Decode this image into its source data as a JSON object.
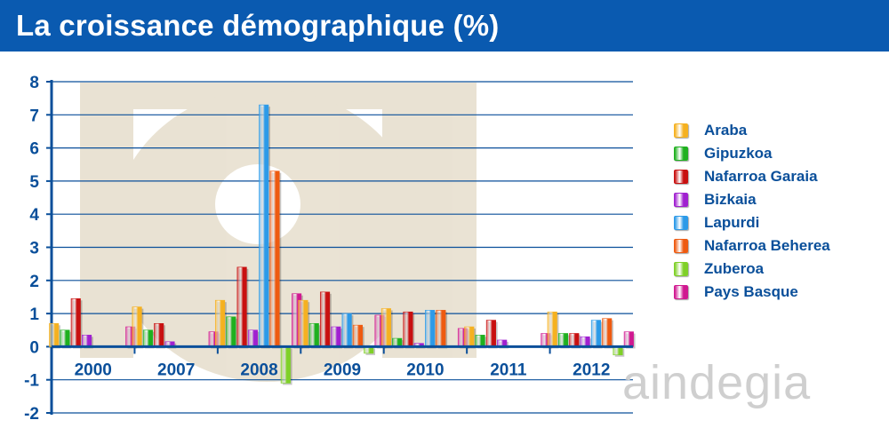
{
  "header": {
    "title": "La croissance démographique (%)"
  },
  "watermark": {
    "text": "aindegia"
  },
  "colors": {
    "header_bg": "#0a5ab0",
    "axis": "#0a4f9a",
    "grid": "#0a4f9a",
    "watermark": "#d8ccb0"
  },
  "chart_data": {
    "type": "bar",
    "title": "La croissance démographique (%)",
    "xlabel": "",
    "ylabel": "",
    "ylim": [
      -2,
      8
    ],
    "yticks": [
      -2,
      -1,
      0,
      1,
      2,
      3,
      4,
      5,
      6,
      7,
      8
    ],
    "grid": true,
    "legend_position": "right",
    "categories": [
      "2000",
      "2007",
      "2008",
      "2009",
      "2010",
      "2011",
      "2012"
    ],
    "series": [
      {
        "name": "Araba",
        "color": "#f5b120",
        "values": [
          0.7,
          1.2,
          1.4,
          1.4,
          1.15,
          0.6,
          1.05
        ]
      },
      {
        "name": "Gipuzkoa",
        "color": "#1fb01f",
        "values": [
          0.5,
          0.5,
          0.9,
          0.7,
          0.25,
          0.35,
          0.4
        ]
      },
      {
        "name": "Nafarroa Garaia",
        "color": "#c81010",
        "values": [
          1.45,
          0.7,
          2.4,
          1.65,
          1.05,
          0.8,
          0.4
        ]
      },
      {
        "name": "Bizkaia",
        "color": "#a020d0",
        "values": [
          0.35,
          0.15,
          0.5,
          0.6,
          0.1,
          0.2,
          0.3
        ]
      },
      {
        "name": "Lapurdi",
        "color": "#2c9ae8",
        "values": [
          0.0,
          0.0,
          7.3,
          1.0,
          1.1,
          0.0,
          0.8
        ]
      },
      {
        "name": "Nafarroa Beherea",
        "color": "#ee5a10",
        "values": [
          0.0,
          0.0,
          5.3,
          0.65,
          1.1,
          0.0,
          0.85
        ]
      },
      {
        "name": "Zuberoa",
        "color": "#7fd028",
        "values": [
          0.0,
          0.0,
          -1.1,
          -0.2,
          0.0,
          0.0,
          -0.25
        ]
      },
      {
        "name": "Pays Basque",
        "color": "#d01890",
        "values": [
          0.6,
          0.45,
          1.6,
          0.95,
          0.55,
          0.4,
          0.45
        ]
      }
    ]
  }
}
